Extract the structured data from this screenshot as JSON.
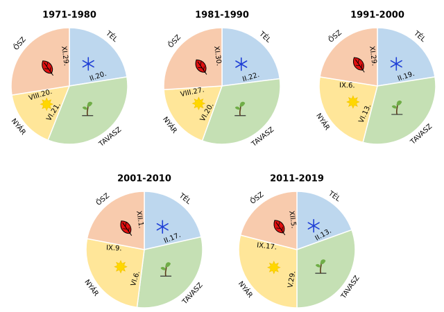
{
  "colors": {
    "winter": "#bdd7ee",
    "spring": "#c5e0b4",
    "summer": "#ffe699",
    "autumn": "#f8cbad",
    "divider": "#ffffff",
    "snow": "#1f3fd6",
    "sun": "#ffd700",
    "leaf": "#e01010",
    "sprout_leaf": "#70ad47",
    "sprout_stem": "#5b3a1a"
  },
  "icons": {
    "winter": "snowflake-icon",
    "spring": "sprout-icon",
    "summer": "sun-icon",
    "autumn": "leaf-icon"
  },
  "season_names": {
    "winter": "TÉL",
    "spring": "TAVASZ",
    "summer": "NYÁR",
    "autumn": "ŐSZ"
  },
  "charts": [
    {
      "title": "1971-1980",
      "winter_start": "XI.29.",
      "spring_start": "II.20.",
      "summer_start": "VI.21.",
      "autumn_start": "VIII.20.",
      "season_fractions": {
        "winter": 0.225,
        "spring": 0.335,
        "summer": 0.165,
        "autumn": 0.275
      }
    },
    {
      "title": "1981-1990",
      "winter_start": "XI.30.",
      "spring_start": "II.22.",
      "summer_start": "VI.20.",
      "autumn_start": "VIII.27.",
      "season_fractions": {
        "winter": 0.23,
        "spring": 0.325,
        "summer": 0.185,
        "autumn": 0.26
      }
    },
    {
      "title": "1991-2000",
      "winter_start": "XI.29.",
      "spring_start": "II.19.",
      "summer_start": "VI.13.",
      "autumn_start": "IX.6.",
      "season_fractions": {
        "winter": 0.225,
        "spring": 0.315,
        "summer": 0.235,
        "autumn": 0.225
      }
    },
    {
      "title": "2001-2010",
      "winter_start": "XII.1.",
      "spring_start": "II.17.",
      "summer_start": "VI.6.",
      "autumn_start": "IX.9.",
      "season_fractions": {
        "winter": 0.215,
        "spring": 0.305,
        "summer": 0.26,
        "autumn": 0.22
      }
    },
    {
      "title": "2011-2019",
      "winter_start": "XII.5.",
      "spring_start": "II.13.",
      "summer_start": "V.29.",
      "autumn_start": "IX.17.",
      "season_fractions": {
        "winter": 0.195,
        "spring": 0.305,
        "summer": 0.29,
        "autumn": 0.21
      }
    }
  ]
}
